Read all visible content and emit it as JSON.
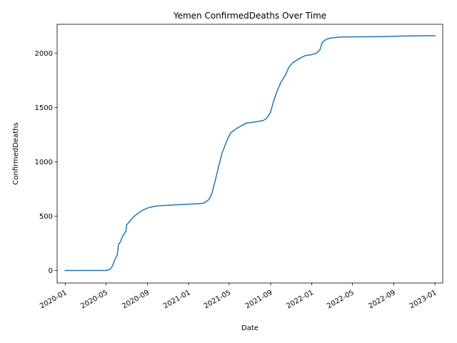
{
  "chart_data": {
    "type": "line",
    "title": "Yemen  ConfirmedDeaths Over Time",
    "xlabel": "Date",
    "ylabel": "ConfirmedDeaths",
    "xlim": [
      "2019-12-08",
      "2023-01-24"
    ],
    "ylim": [
      -115,
      2265
    ],
    "x_ticks": [
      "2020-01-01",
      "2020-05-01",
      "2020-09-01",
      "2021-01-01",
      "2021-05-01",
      "2021-09-01",
      "2022-01-01",
      "2022-05-01",
      "2022-09-01",
      "2023-01-01"
    ],
    "x_tick_labels": [
      "2020-01",
      "2020-05",
      "2020-09",
      "2021-01",
      "2021-05",
      "2021-09",
      "2022-01",
      "2022-05",
      "2022-09",
      "2023-01"
    ],
    "y_ticks": [
      0,
      500,
      1000,
      1500,
      2000
    ],
    "y_tick_labels": [
      "0",
      "500",
      "1000",
      "1500",
      "2000"
    ],
    "grid": false,
    "series": [
      {
        "color": "#1f77b4",
        "points": [
          [
            "2020-01-01",
            0
          ],
          [
            "2020-04-29",
            0
          ],
          [
            "2020-05-06",
            3
          ],
          [
            "2020-05-13",
            12
          ],
          [
            "2020-05-20",
            40
          ],
          [
            "2020-05-27",
            100
          ],
          [
            "2020-06-03",
            140
          ],
          [
            "2020-06-07",
            240
          ],
          [
            "2020-06-12",
            260
          ],
          [
            "2020-06-17",
            300
          ],
          [
            "2020-06-24",
            340
          ],
          [
            "2020-06-29",
            360
          ],
          [
            "2020-07-01",
            420
          ],
          [
            "2020-07-10",
            450
          ],
          [
            "2020-07-20",
            490
          ],
          [
            "2020-08-01",
            520
          ],
          [
            "2020-08-15",
            550
          ],
          [
            "2020-09-01",
            575
          ],
          [
            "2020-09-15",
            585
          ],
          [
            "2020-10-01",
            595
          ],
          [
            "2020-11-01",
            600
          ],
          [
            "2020-12-01",
            605
          ],
          [
            "2021-01-01",
            610
          ],
          [
            "2021-02-01",
            615
          ],
          [
            "2021-02-15",
            620
          ],
          [
            "2021-03-01",
            650
          ],
          [
            "2021-03-10",
            700
          ],
          [
            "2021-03-20",
            820
          ],
          [
            "2021-03-31",
            960
          ],
          [
            "2021-04-10",
            1080
          ],
          [
            "2021-04-25",
            1200
          ],
          [
            "2021-05-05",
            1265
          ],
          [
            "2021-05-20",
            1300
          ],
          [
            "2021-06-05",
            1330
          ],
          [
            "2021-06-20",
            1355
          ],
          [
            "2021-07-15",
            1365
          ],
          [
            "2021-08-10",
            1380
          ],
          [
            "2021-08-20",
            1400
          ],
          [
            "2021-08-31",
            1450
          ],
          [
            "2021-09-10",
            1560
          ],
          [
            "2021-09-20",
            1650
          ],
          [
            "2021-10-01",
            1730
          ],
          [
            "2021-10-15",
            1800
          ],
          [
            "2021-10-25",
            1870
          ],
          [
            "2021-11-05",
            1910
          ],
          [
            "2021-11-20",
            1940
          ],
          [
            "2021-12-01",
            1960
          ],
          [
            "2021-12-15",
            1980
          ],
          [
            "2022-01-01",
            1985
          ],
          [
            "2022-01-15",
            2000
          ],
          [
            "2022-01-25",
            2030
          ],
          [
            "2022-02-01",
            2100
          ],
          [
            "2022-02-15",
            2130
          ],
          [
            "2022-03-01",
            2140
          ],
          [
            "2022-04-01",
            2148
          ],
          [
            "2022-06-01",
            2150
          ],
          [
            "2022-08-01",
            2152
          ],
          [
            "2022-10-01",
            2157
          ],
          [
            "2023-01-01",
            2160
          ]
        ]
      }
    ]
  }
}
